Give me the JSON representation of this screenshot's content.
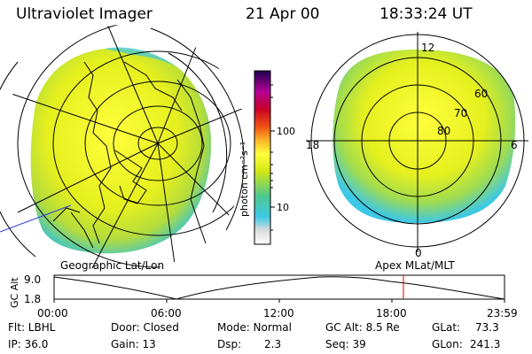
{
  "header": {
    "instrument": "Ultraviolet Imager",
    "date": "21 Apr 00",
    "time": "18:33:24 UT"
  },
  "colors": {
    "scale": [
      "#ffffff",
      "#dcdcdc",
      "#3cc8e6",
      "#50c88c",
      "#d2e614",
      "#ffff3c",
      "#fab428",
      "#f05014",
      "#c80028",
      "#b40096",
      "#1e0050"
    ]
  },
  "colorbar": {
    "unit": "photon cm⁻²s⁻¹",
    "tick_100": "100",
    "tick_10": "10"
  },
  "polar_plot": {
    "mlt_top": "12",
    "mlt_left": "18",
    "mlt_right": "6",
    "mlt_bottom": "0",
    "lat_60": "60",
    "lat_70": "70",
    "lat_80": "80"
  },
  "labels": {
    "geo": "Geographic Lat/Lon",
    "apex": "Apex MLat/MLT"
  },
  "orbit": {
    "ylabel": "GC Alt",
    "y_max": "9.0",
    "y_min": "1.8",
    "t0": "00:00",
    "t1": "06:00",
    "t2": "12:00",
    "t3": "18:00",
    "t4": "23:59"
  },
  "info": {
    "flt": "Flt: LBHL",
    "ip": "IP: 36.0",
    "door": "Door: Closed",
    "gain": "Gain: 13",
    "mode": "Mode: Normal",
    "dsp_label": "Dsp:",
    "dsp_value": "2.3",
    "gcalt": "GC Alt: 8.5 Re",
    "seq": "Seq: 39",
    "glat_label": "GLat:",
    "glat_value": "73.3",
    "glon_label": "GLon:",
    "glon_value": "241.3"
  }
}
